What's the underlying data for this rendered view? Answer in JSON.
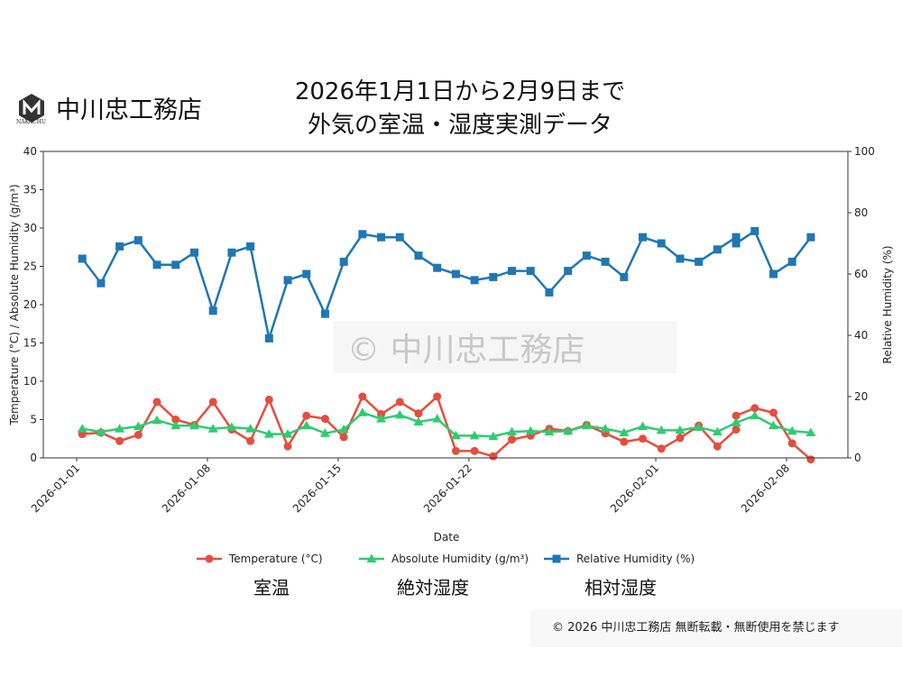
{
  "header": {
    "title_line1": "2026年1月1日から2月9日まで",
    "title_line2": "外気の室温・湿度実測データ"
  },
  "logo": {
    "name": "中川忠工務店",
    "sub": "NAKACHU"
  },
  "watermark": "© 中川忠工務店",
  "footer": "© 2026 中川忠工務店 無断転載・無断使用を禁じます",
  "legend_jp": {
    "temperature": "室温",
    "abs_humidity": "絶対湿度",
    "rel_humidity": "相対湿度"
  },
  "chart_data": {
    "type": "line",
    "xlabel": "Date",
    "ylabel_left": "Temperature (°C) / Absolute Humidity (g/m³)",
    "ylabel_right": "Relative Humidity (%)",
    "ylim_left": [
      0,
      40
    ],
    "ylim_right": [
      0,
      100
    ],
    "yticks_left": [
      0,
      5,
      10,
      15,
      20,
      25,
      30,
      35,
      40
    ],
    "yticks_right": [
      0,
      20,
      40,
      60,
      80,
      100
    ],
    "xticks": [
      "2026-01-01",
      "2026-01-08",
      "2026-01-15",
      "2026-01-22",
      "2026-02-01",
      "2026-02-08"
    ],
    "grid": false,
    "legend_placement": "bottom",
    "x": [
      "2026-01-01",
      "2026-01-02",
      "2026-01-03",
      "2026-01-04",
      "2026-01-05",
      "2026-01-06",
      "2026-01-07",
      "2026-01-08",
      "2026-01-09",
      "2026-01-10",
      "2026-01-11",
      "2026-01-12",
      "2026-01-13",
      "2026-01-14",
      "2026-01-15",
      "2026-01-16",
      "2026-01-17",
      "2026-01-18",
      "2026-01-19",
      "2026-01-20",
      "2026-01-21",
      "2026-01-22",
      "2026-01-23",
      "2026-01-24",
      "2026-01-25",
      "2026-01-26",
      "2026-01-27",
      "2026-01-28",
      "2026-01-29",
      "2026-01-30",
      "2026-01-31",
      "2026-02-01",
      "2026-02-02",
      "2026-02-03",
      "2026-02-04",
      "2026-02-05",
      "2026-02-05",
      "2026-02-06",
      "2026-02-07",
      "2026-02-08",
      "2026-02-09"
    ],
    "series": [
      {
        "name": "Temperature (°C)",
        "axis": "left",
        "color": "#e74c3c",
        "marker": "circle",
        "values": [
          3.1,
          3.3,
          2.2,
          3.0,
          7.3,
          5.0,
          4.3,
          7.3,
          3.7,
          2.2,
          7.6,
          1.5,
          5.5,
          5.1,
          2.7,
          8.0,
          5.7,
          7.3,
          5.8,
          8.0,
          0.9,
          0.9,
          0.2,
          2.4,
          2.9,
          3.8,
          3.5,
          4.3,
          3.2,
          2.1,
          2.5,
          1.2,
          2.6,
          4.2,
          1.5,
          3.7,
          5.5,
          6.5,
          5.9,
          1.9,
          -0.2
        ]
      },
      {
        "name": "Absolute Humidity (g/m³)",
        "axis": "left",
        "color": "#2ecc71",
        "marker": "triangle",
        "values": [
          3.8,
          3.4,
          3.8,
          4.1,
          4.9,
          4.2,
          4.2,
          3.8,
          4.0,
          3.8,
          3.1,
          3.1,
          4.2,
          3.2,
          3.7,
          5.9,
          5.1,
          5.6,
          4.7,
          5.1,
          2.9,
          2.9,
          2.8,
          3.4,
          3.5,
          3.4,
          3.5,
          4.2,
          3.8,
          3.3,
          4.1,
          3.6,
          3.6,
          4.0,
          3.4,
          4.6,
          4.6,
          5.5,
          4.2,
          3.5,
          3.3
        ]
      },
      {
        "name": "Relative Humidity (%)",
        "axis": "right",
        "color": "#1f77b4",
        "marker": "square",
        "values": [
          65,
          57,
          69,
          71,
          63,
          63,
          67,
          48,
          67,
          69,
          39,
          58,
          60,
          47,
          64,
          73,
          72,
          72,
          66,
          62,
          60,
          58,
          59,
          61,
          61,
          54,
          61,
          66,
          64,
          59,
          72,
          70,
          65,
          64,
          68,
          72,
          70,
          74,
          60,
          64,
          72
        ]
      }
    ]
  }
}
